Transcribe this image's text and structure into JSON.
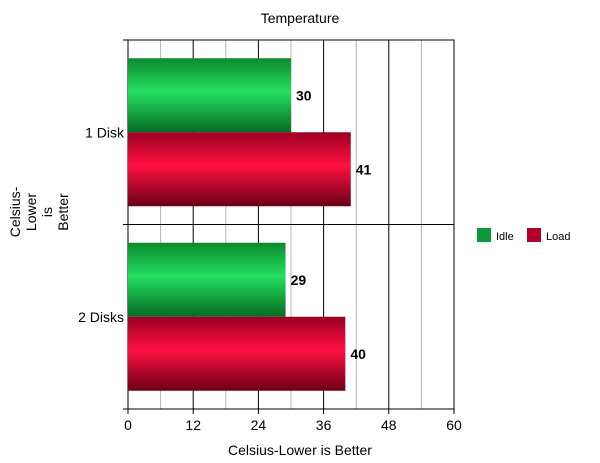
{
  "chart_data": {
    "type": "bar",
    "orientation": "horizontal",
    "title": "Temperature",
    "xlabel": "Celsius-Lower is Better",
    "ylabel_lines": [
      "Celsius-",
      "Lower",
      "is",
      "Better"
    ],
    "categories": [
      "1 Disk",
      "2 Disks"
    ],
    "xlim": [
      0,
      60
    ],
    "xticks": [
      0,
      12,
      24,
      36,
      48,
      60
    ],
    "series": [
      {
        "name": "Idle",
        "values": [
          30,
          29
        ],
        "color": "#0a9a3a"
      },
      {
        "name": "Load",
        "values": [
          41,
          40
        ],
        "color": "#b0002a"
      }
    ],
    "legend_position": "right",
    "grid": true
  }
}
